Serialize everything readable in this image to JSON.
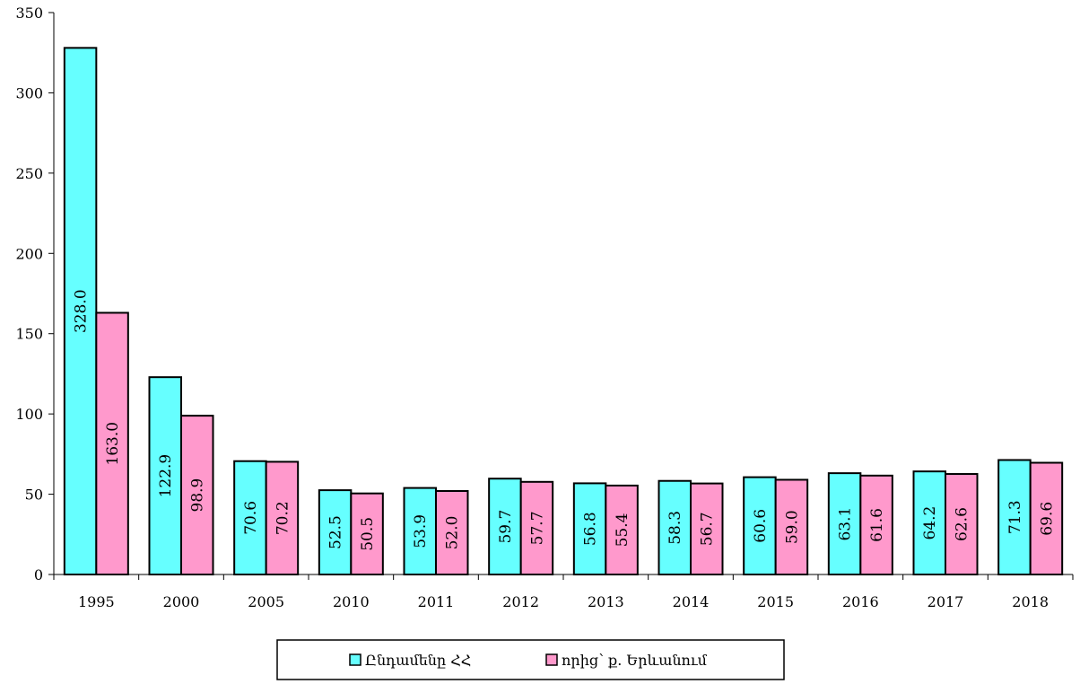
{
  "chart_data": {
    "type": "bar",
    "categories": [
      "1995",
      "2000",
      "2005",
      "2010",
      "2011",
      "2012",
      "2013",
      "2014",
      "2015",
      "2016",
      "2017",
      "2018"
    ],
    "series": [
      {
        "name": "Ընդամենը ՀՀ",
        "color": "#66ffff",
        "values": [
          328.0,
          122.9,
          70.6,
          52.5,
          53.9,
          59.7,
          56.8,
          58.3,
          60.6,
          63.1,
          64.2,
          71.3
        ],
        "labels": [
          "328.0",
          "122.9",
          "70.6",
          "52.5",
          "53.9",
          "59.7",
          "56.8",
          "58.3",
          "60.6",
          "63.1",
          "64.2",
          "71.3"
        ]
      },
      {
        "name": "որից՝ ք. Երևանում",
        "color": "#ff99cc",
        "values": [
          163.0,
          98.9,
          70.2,
          50.5,
          52.0,
          57.7,
          55.4,
          56.7,
          59.0,
          61.6,
          62.6,
          69.6
        ],
        "labels": [
          "163.0",
          "98.9",
          "70.2",
          "50.5",
          "52.0",
          "57.7",
          "55.4",
          "56.7",
          "59.0",
          "61.6",
          "62.6",
          "69.6"
        ]
      }
    ],
    "ylim": [
      0,
      350
    ],
    "yticks": [
      0,
      50,
      100,
      150,
      200,
      250,
      300,
      350
    ],
    "grid": false,
    "legend_position": "bottom",
    "data_labels": "inside-rotated"
  }
}
